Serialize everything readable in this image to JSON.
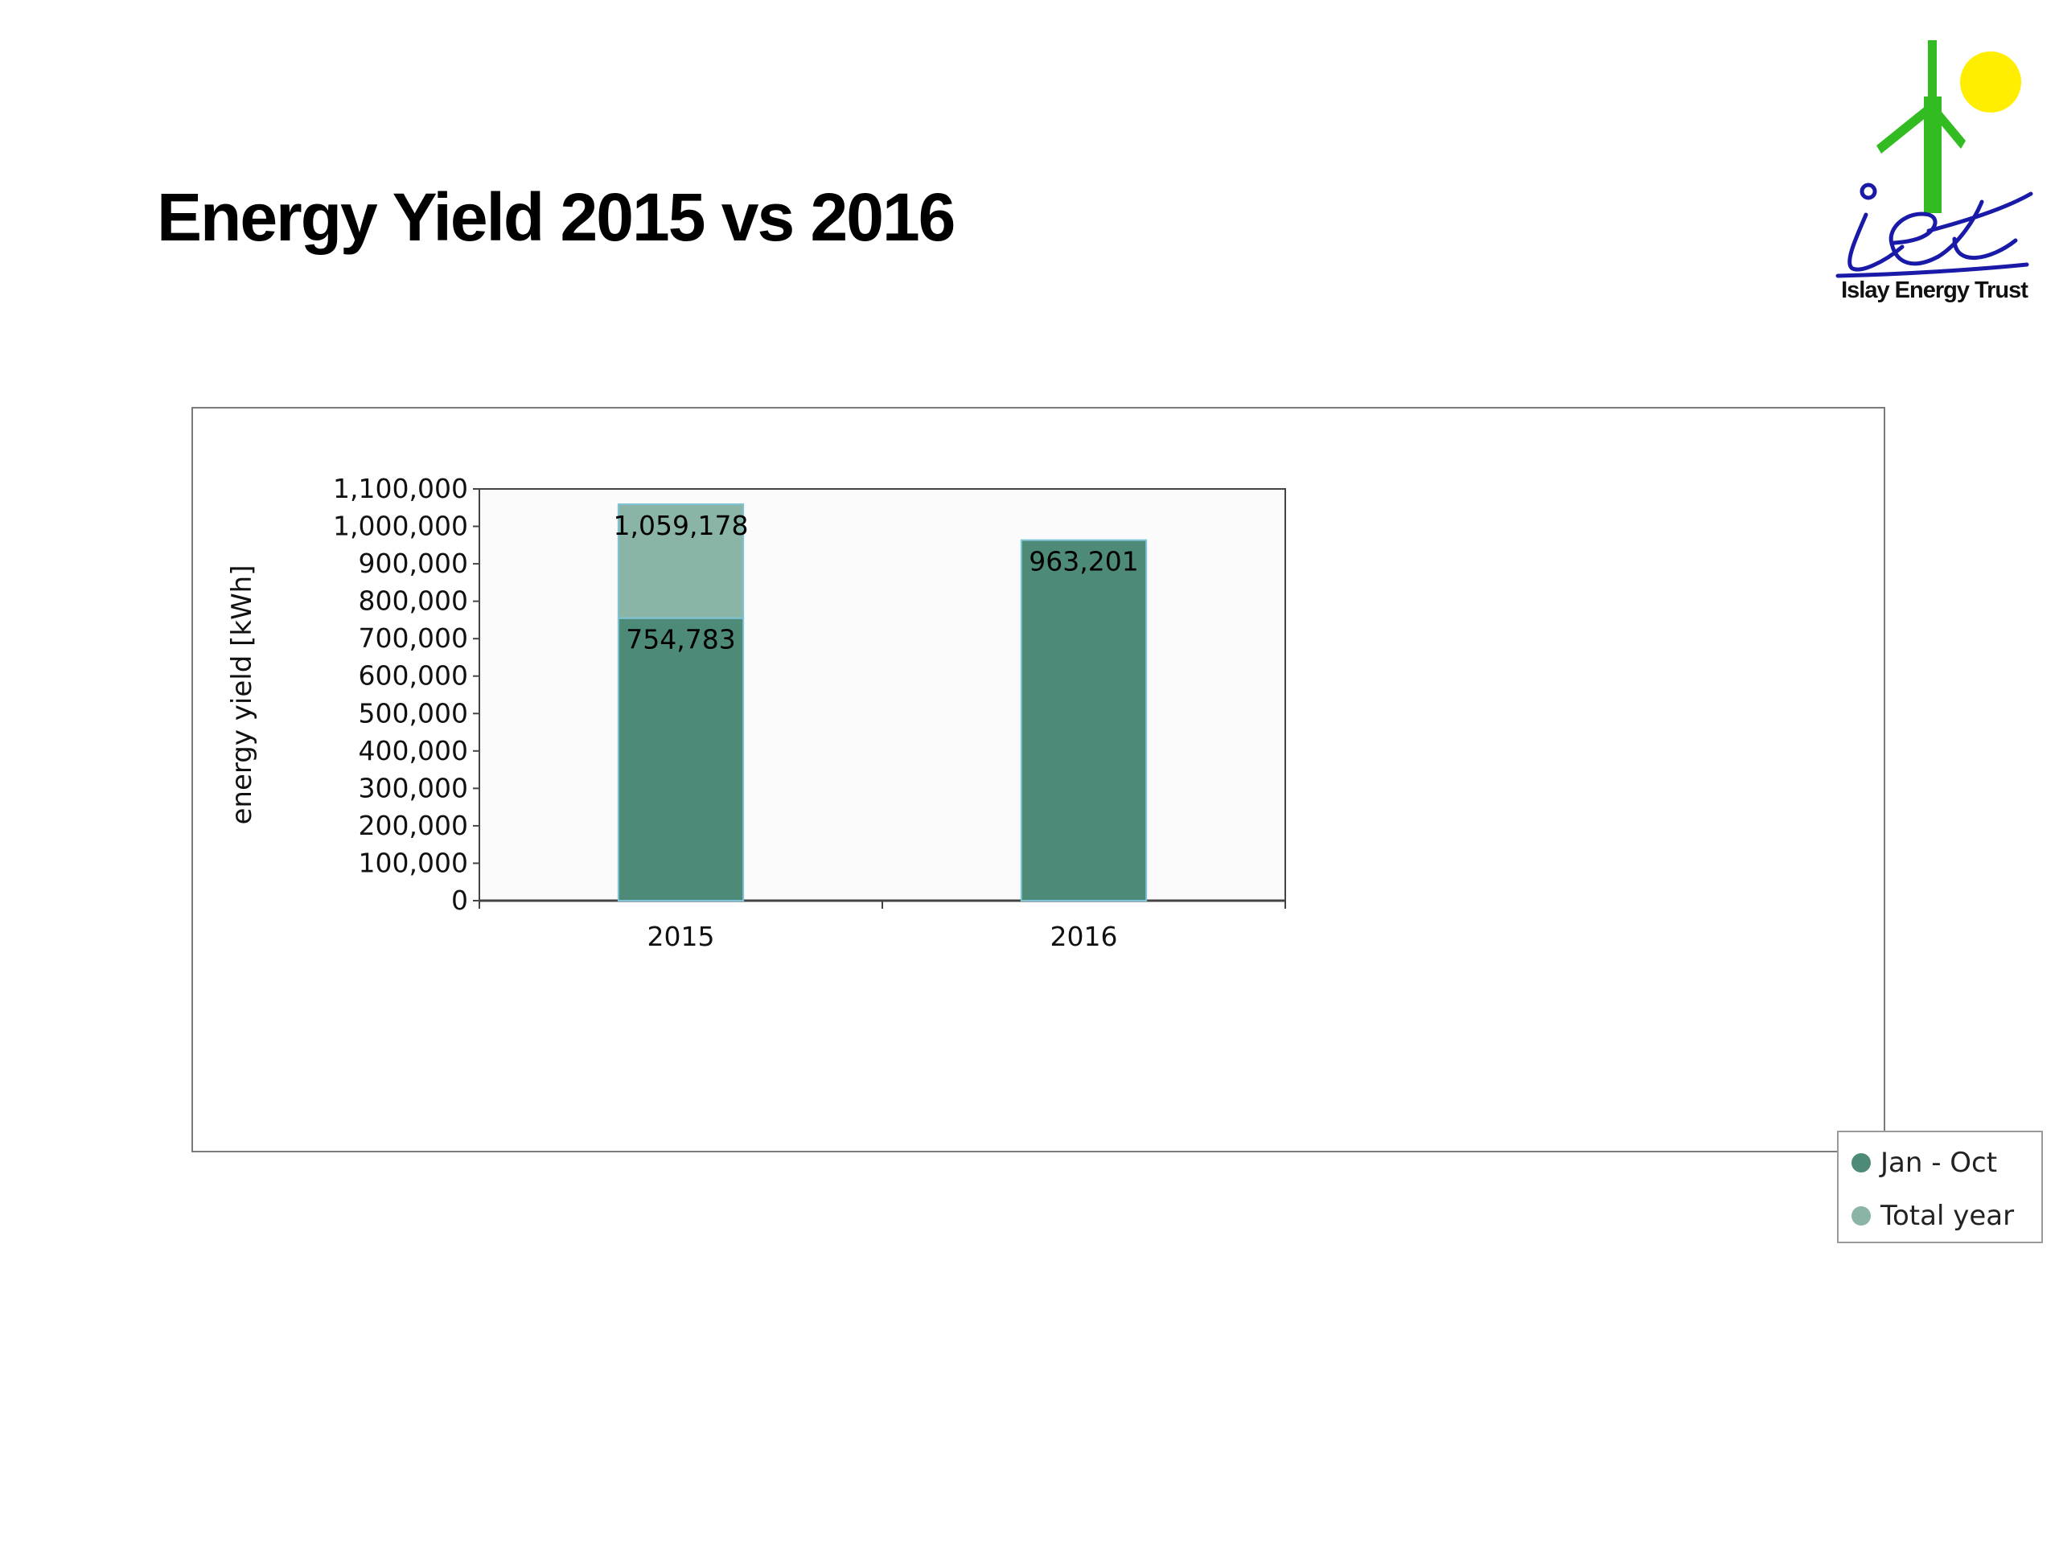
{
  "slide": {
    "title": "Energy Yield 2015 vs 2016"
  },
  "logo": {
    "text": "Islay Energy Trust",
    "monogram": "iet",
    "colors": {
      "sun": "#ffee00",
      "turbine": "#33bb22",
      "script": "#1a1aa8"
    }
  },
  "chart_data": {
    "type": "bar",
    "stacked": true,
    "categories": [
      "2015",
      "2016"
    ],
    "series": [
      {
        "name": "Jan - Oct",
        "values": [
          754783,
          963201
        ],
        "color": "#4e8a78"
      },
      {
        "name": "Total year",
        "values": [
          304395,
          0
        ],
        "color": "#8ab5a6"
      }
    ],
    "data_labels": [
      {
        "category": "2015",
        "text": "754,783"
      },
      {
        "category": "2015",
        "text": "1,059,178"
      },
      {
        "category": "2016",
        "text": "963,201"
      }
    ],
    "ylabel": "energy yield [kWh]",
    "xlabel": "",
    "ylim": [
      0,
      1100000
    ],
    "yticks": [
      "0",
      "100,000",
      "200,000",
      "300,000",
      "400,000",
      "500,000",
      "600,000",
      "700,000",
      "800,000",
      "900,000",
      "1,000,000",
      "1,100,000"
    ],
    "grid": false,
    "legend_position": "right"
  }
}
